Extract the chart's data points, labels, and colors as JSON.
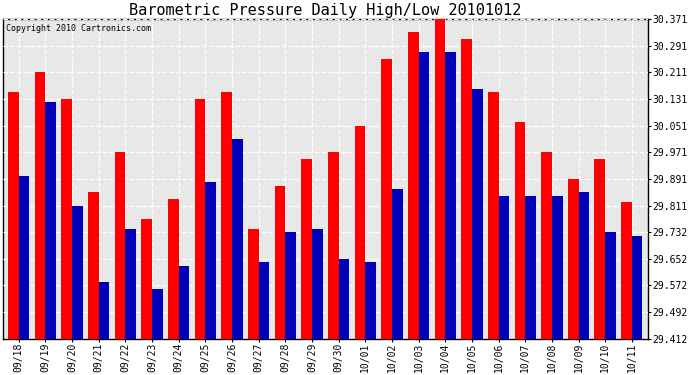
{
  "title": "Barometric Pressure Daily High/Low 20101012",
  "copyright": "Copyright 2010 Cartronics.com",
  "categories": [
    "09/18",
    "09/19",
    "09/20",
    "09/21",
    "09/22",
    "09/23",
    "09/24",
    "09/25",
    "09/26",
    "09/27",
    "09/28",
    "09/29",
    "09/30",
    "10/01",
    "10/02",
    "10/03",
    "10/04",
    "10/05",
    "10/06",
    "10/07",
    "10/08",
    "10/09",
    "10/10",
    "10/11"
  ],
  "highs": [
    30.151,
    30.211,
    30.131,
    29.851,
    29.971,
    29.771,
    29.831,
    30.131,
    30.151,
    29.741,
    29.871,
    29.951,
    29.971,
    30.051,
    30.251,
    30.331,
    30.371,
    30.311,
    30.151,
    30.061,
    29.971,
    29.891,
    29.951,
    29.821
  ],
  "lows": [
    29.901,
    30.121,
    29.811,
    29.581,
    29.741,
    29.561,
    29.631,
    29.881,
    30.011,
    29.641,
    29.731,
    29.741,
    29.651,
    29.641,
    29.861,
    30.271,
    30.271,
    30.161,
    29.841,
    29.841,
    29.841,
    29.851,
    29.731,
    29.721
  ],
  "ylim_min": 29.412,
  "ylim_max": 30.371,
  "yticks": [
    29.412,
    29.492,
    29.572,
    29.652,
    29.732,
    29.811,
    29.891,
    29.971,
    30.051,
    30.131,
    30.211,
    30.291,
    30.371
  ],
  "high_color": "#ff0000",
  "low_color": "#0000bb",
  "bg_color": "#ffffff",
  "plot_bg_color": "#e8e8e8",
  "grid_color": "#ffffff",
  "bar_width": 0.4,
  "title_fontsize": 11,
  "tick_fontsize": 7
}
